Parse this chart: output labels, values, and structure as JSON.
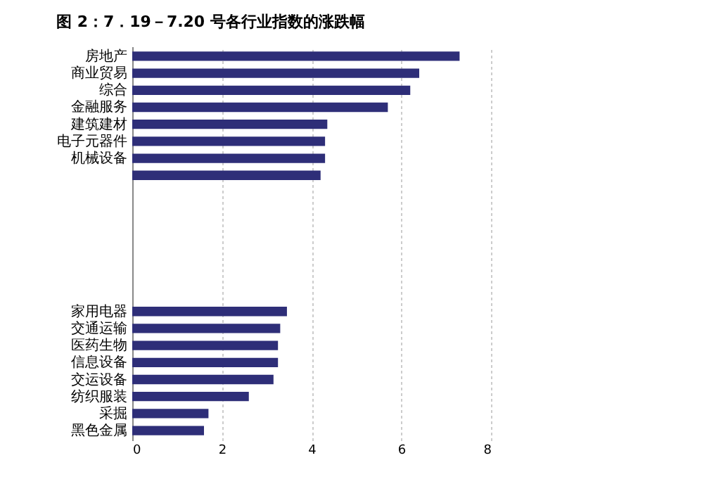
{
  "chart_data": {
    "type": "bar",
    "orientation": "horizontal",
    "title": "图 2：7．19－7.20 号各行业指数的涨跌幅",
    "categories": [
      "房地产",
      "商业贸易",
      "综合",
      "金融服务",
      "建筑建材",
      "电子元器件",
      "机械设备",
      null,
      null,
      null,
      null,
      null,
      null,
      null,
      null,
      "家用电器",
      "交通运输",
      "医药生物",
      "信息设备",
      "交运设备",
      "纺织服装",
      "采掘",
      "黑色金属"
    ],
    "values": [
      7.3,
      6.4,
      6.2,
      5.7,
      4.35,
      4.3,
      4.3,
      4.2,
      null,
      null,
      null,
      null,
      null,
      null,
      null,
      3.45,
      3.3,
      3.25,
      3.25,
      3.15,
      2.6,
      1.7,
      1.6
    ],
    "color": "#2e2e78",
    "xlim": [
      0,
      8
    ],
    "xticks": [
      0,
      2,
      4,
      6,
      8
    ],
    "grid": "x"
  }
}
